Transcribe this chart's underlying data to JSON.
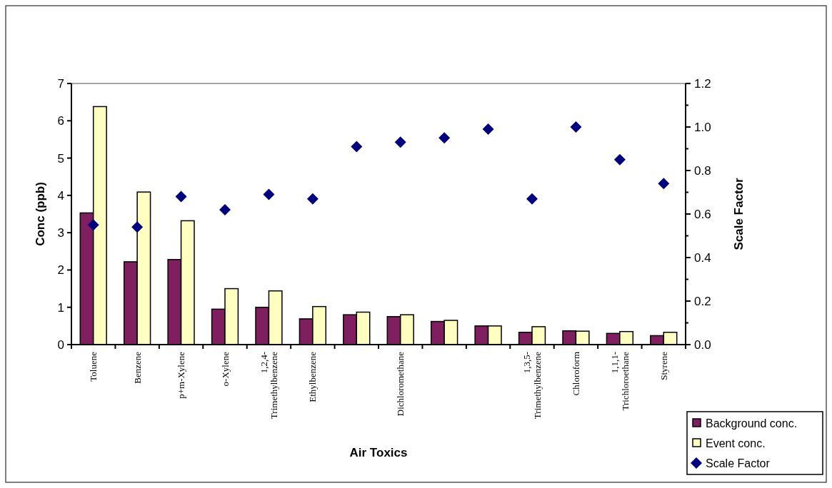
{
  "chart_data": {
    "type": "bar",
    "xlabel": "Air Toxics",
    "ylabel": "Conc (ppb)",
    "y2label": "Scale Factor",
    "categories": [
      "Toluene",
      "Benzene",
      "p+m-Xylene",
      "o-Xylene",
      "1,2,4-Trimethylbenzene",
      "Ethylbenzene",
      null,
      "Dichloromethane",
      null,
      null,
      "1,3,5-Trimethylbenzene",
      "Chloroform",
      "1,1,1-Trichloroethane",
      "Styrene"
    ],
    "series": [
      {
        "name": "Background conc.",
        "color": "#7f1f5f",
        "values": [
          3.53,
          2.22,
          2.28,
          0.95,
          1.0,
          0.69,
          0.8,
          0.75,
          0.62,
          0.5,
          0.33,
          0.37,
          0.3,
          0.24
        ]
      },
      {
        "name": "Event conc.",
        "color": "#ffffc0",
        "values": [
          6.38,
          4.09,
          3.32,
          1.5,
          1.44,
          1.02,
          0.87,
          0.8,
          0.65,
          0.5,
          0.48,
          0.36,
          0.35,
          0.33
        ]
      },
      {
        "name": "Scale Factor",
        "type": "scatter",
        "axis": "y2",
        "marker": "diamond",
        "color": "#000080",
        "values": [
          0.55,
          0.54,
          0.68,
          0.62,
          0.69,
          0.67,
          0.91,
          0.93,
          0.95,
          0.99,
          0.67,
          1.0,
          0.85,
          0.74
        ]
      }
    ],
    "ylim": [
      0,
      7
    ],
    "yticks": [
      0,
      1,
      2,
      3,
      4,
      5,
      6,
      7
    ],
    "y2lim": [
      0,
      1.2
    ],
    "y2ticks": [
      {
        "value": 0,
        "label": "0.0"
      },
      {
        "value": 0.1,
        "label": null
      },
      {
        "value": 0.2,
        "label": "0.2"
      },
      {
        "value": 0.3,
        "label": null
      },
      {
        "value": 0.4,
        "label": "0.4"
      },
      {
        "value": 0.5,
        "label": null
      },
      {
        "value": 0.6,
        "label": "0.6"
      },
      {
        "value": 0.7,
        "label": null
      },
      {
        "value": 0.8,
        "label": "0.8"
      },
      {
        "value": 0.9,
        "label": null
      },
      {
        "value": 1.0,
        "label": "1.0"
      },
      {
        "value": 1.1,
        "label": null
      },
      {
        "value": 1.2,
        "label": "1.2"
      }
    ],
    "grid": false,
    "legend": "bottom right"
  }
}
